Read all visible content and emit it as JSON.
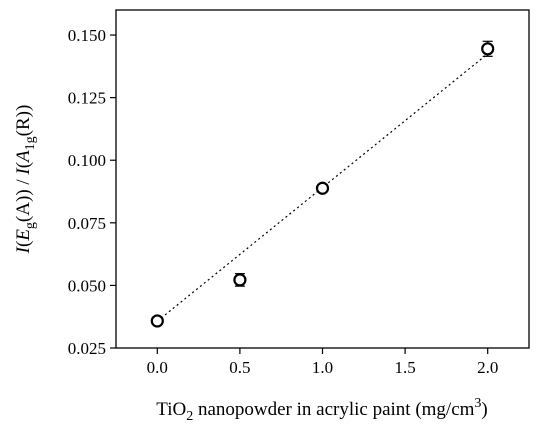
{
  "chart_data": {
    "type": "scatter",
    "xlabel": {
      "base": "TiO",
      "sub": "2",
      "rest": " nanopowder in acrylic paint (mg/cm",
      "sup": "3",
      "close": ")"
    },
    "ylabel": {
      "p1": "I",
      "p2": "(",
      "p3": "E",
      "p4": "g",
      "p5": "(A)) / ",
      "p6": "I",
      "p7": "(",
      "p8": "A",
      "p9": "1g",
      "p10": "(R))"
    },
    "xlim": [
      -0.25,
      2.25
    ],
    "ylim": [
      0.025,
      0.16
    ],
    "x_ticks": [
      0.0,
      0.5,
      1.0,
      1.5,
      2.0
    ],
    "x_tick_labels": [
      "0.0",
      "0.5",
      "1.0",
      "1.5",
      "2.0"
    ],
    "y_ticks": [
      0.025,
      0.05,
      0.075,
      0.1,
      0.125,
      0.15
    ],
    "y_tick_labels": [
      "0.025",
      "0.050",
      "0.075",
      "0.100",
      "0.125",
      "0.150"
    ],
    "series": [
      {
        "marker": "open-circle",
        "x": [
          0.0,
          0.5,
          1.0,
          2.0
        ],
        "y": [
          0.0358,
          0.0522,
          0.0888,
          0.1445
        ],
        "error": [
          0.001,
          0.0025,
          0.0015,
          0.003
        ]
      }
    ],
    "fit_line": {
      "style": "dotted",
      "x": [
        0.0,
        2.0
      ],
      "y": [
        0.0357,
        0.1425
      ]
    },
    "grid": false,
    "legend": "none"
  }
}
